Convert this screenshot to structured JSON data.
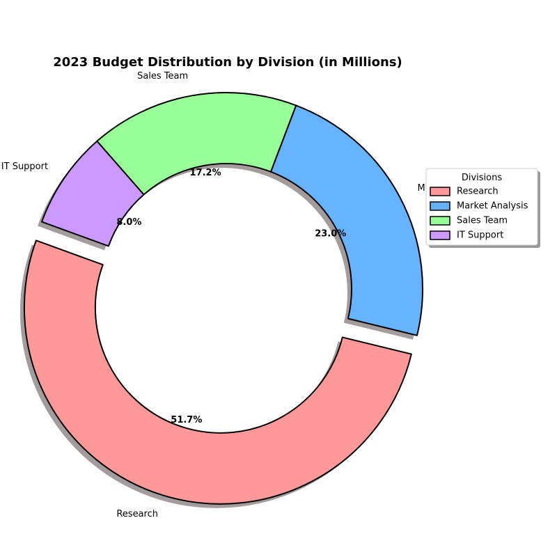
{
  "chart_data": {
    "type": "pie",
    "title": "2023 Budget Distribution by Division (in Millions)",
    "categories": [
      "Research",
      "Market Analysis",
      "Sales Team",
      "IT Support"
    ],
    "values": [
      51.7,
      23.0,
      17.2,
      8.0
    ],
    "percent_labels": [
      "51.7%",
      "23.0%",
      "17.2%",
      "8.0%"
    ],
    "colors": [
      "#ff9999",
      "#66b3ff",
      "#99ff99",
      "#cc99ff"
    ],
    "donut": true,
    "explode": [
      0.1,
      0,
      0,
      0
    ],
    "shadow": true,
    "start_angle_deg": 160,
    "direction": "counterclockwise",
    "legend": {
      "title": "Divisions",
      "placement": "right",
      "entries": [
        "Research",
        "Market Analysis",
        "Sales Team",
        "IT Support"
      ]
    }
  }
}
